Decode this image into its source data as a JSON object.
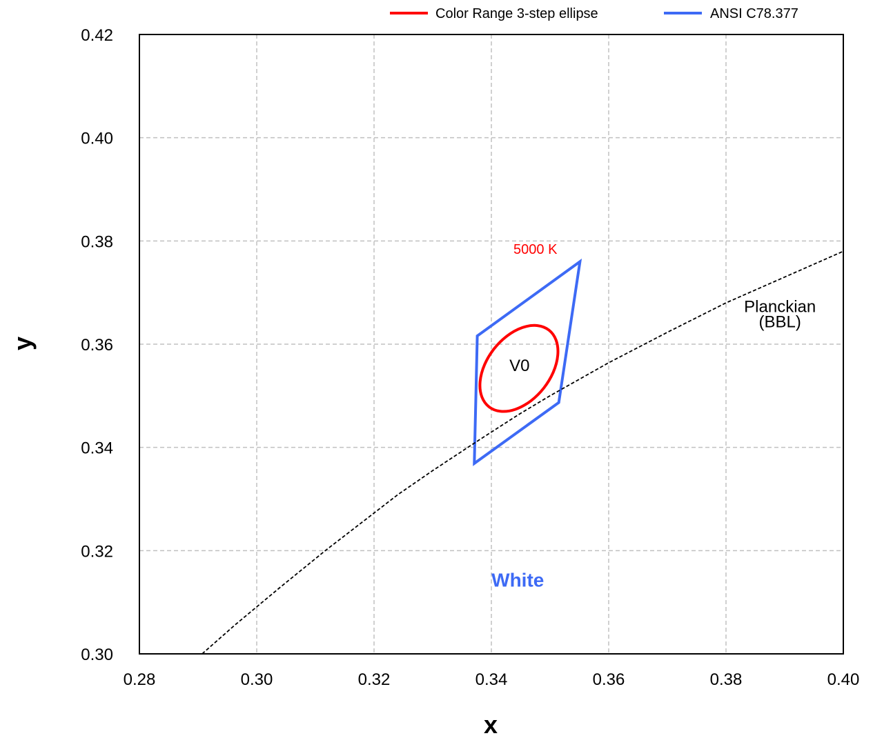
{
  "chart_data": {
    "type": "line",
    "xlabel": "x",
    "ylabel": "y",
    "xlim": [
      0.28,
      0.4
    ],
    "ylim": [
      0.3,
      0.42
    ],
    "x_ticks": [
      "0.28",
      "0.30",
      "0.32",
      "0.34",
      "0.36",
      "0.38",
      "0.40"
    ],
    "y_ticks": [
      "0.30",
      "0.32",
      "0.34",
      "0.36",
      "0.38",
      "0.40",
      "0.42"
    ],
    "grid": true,
    "legend_position": "top-right",
    "series": [
      {
        "name": "Color Range 3-step ellipse",
        "color": "#ff0000",
        "kind": "ellipse",
        "center": [
          0.3447,
          0.3553
        ],
        "semi_axes": [
          0.0083,
          0.0054
        ],
        "rotation_deg": 52
      },
      {
        "name": "ANSI C78.377",
        "color": "#3d6af5",
        "kind": "quadrilateral",
        "points": [
          [
            0.3371,
            0.3369
          ],
          [
            0.3376,
            0.3616
          ],
          [
            0.3551,
            0.376
          ],
          [
            0.3515,
            0.3487
          ]
        ]
      },
      {
        "name": "",
        "color": "#000000",
        "kind": "planckian-curve",
        "dashed": true,
        "points": [
          [
            0.2907,
            0.3
          ],
          [
            0.2963,
            0.3056
          ],
          [
            0.304,
            0.3129
          ],
          [
            0.3117,
            0.32
          ],
          [
            0.319,
            0.3264
          ],
          [
            0.324,
            0.3308
          ],
          [
            0.33,
            0.3355
          ],
          [
            0.338,
            0.3415
          ],
          [
            0.3447,
            0.3464
          ],
          [
            0.35,
            0.35
          ],
          [
            0.36,
            0.3564
          ],
          [
            0.37,
            0.3623
          ],
          [
            0.38,
            0.368
          ],
          [
            0.39,
            0.373
          ],
          [
            0.4,
            0.378
          ]
        ]
      }
    ],
    "annotations": [
      {
        "text": "5000 K",
        "x": 0.3475,
        "y": 0.3775,
        "color": "#ff0000"
      },
      {
        "text": "V0",
        "x": 0.3448,
        "y": 0.3548,
        "color": "#000000"
      },
      {
        "text": "Planckian",
        "x": 0.3892,
        "y": 0.3662,
        "color": "#000000"
      },
      {
        "text": "(BBL)",
        "x": 0.3892,
        "y": 0.3633,
        "color": "#000000"
      },
      {
        "text": "White",
        "x": 0.3445,
        "y": 0.313,
        "color": "#3d6af5"
      }
    ]
  }
}
